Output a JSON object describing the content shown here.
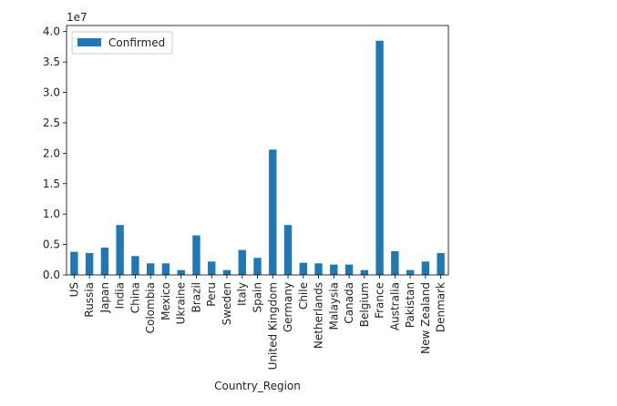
{
  "chart_data": {
    "type": "bar",
    "title": "",
    "xlabel": "Country_Region",
    "ylabel": "",
    "offset_label": "1e7",
    "ylim": [
      0,
      4.1
    ],
    "y_scale_factor": 10000000,
    "yticks": [
      0.0,
      0.5,
      1.0,
      1.5,
      2.0,
      2.5,
      3.0,
      3.5,
      4.0
    ],
    "ytick_labels": [
      "0.0",
      "0.5",
      "1.0",
      "1.5",
      "2.0",
      "2.5",
      "3.0",
      "3.5",
      "4.0"
    ],
    "legend": {
      "placement": "top-left",
      "entries": [
        "Confirmed"
      ]
    },
    "grid": false,
    "categories": [
      "US",
      "Russia",
      "Japan",
      "India",
      "China",
      "Colombia",
      "Mexico",
      "Ukraine",
      "Brazil",
      "Peru",
      "Sweden",
      "Italy",
      "Spain",
      "United Kingdom",
      "Germany",
      "Chile",
      "Netherlands",
      "Malaysia",
      "Canada",
      "Belgium",
      "France",
      "Australia",
      "Pakistan",
      "New Zealand",
      "Denmark"
    ],
    "series": [
      {
        "name": "Confirmed",
        "color": "#1f77b4",
        "values": [
          0.38,
          0.36,
          0.45,
          0.82,
          0.31,
          0.19,
          0.19,
          0.08,
          0.65,
          0.22,
          0.08,
          0.41,
          0.28,
          2.06,
          0.82,
          0.2,
          0.19,
          0.17,
          0.17,
          0.08,
          3.85,
          0.39,
          0.08,
          0.22,
          0.36
        ]
      }
    ]
  }
}
